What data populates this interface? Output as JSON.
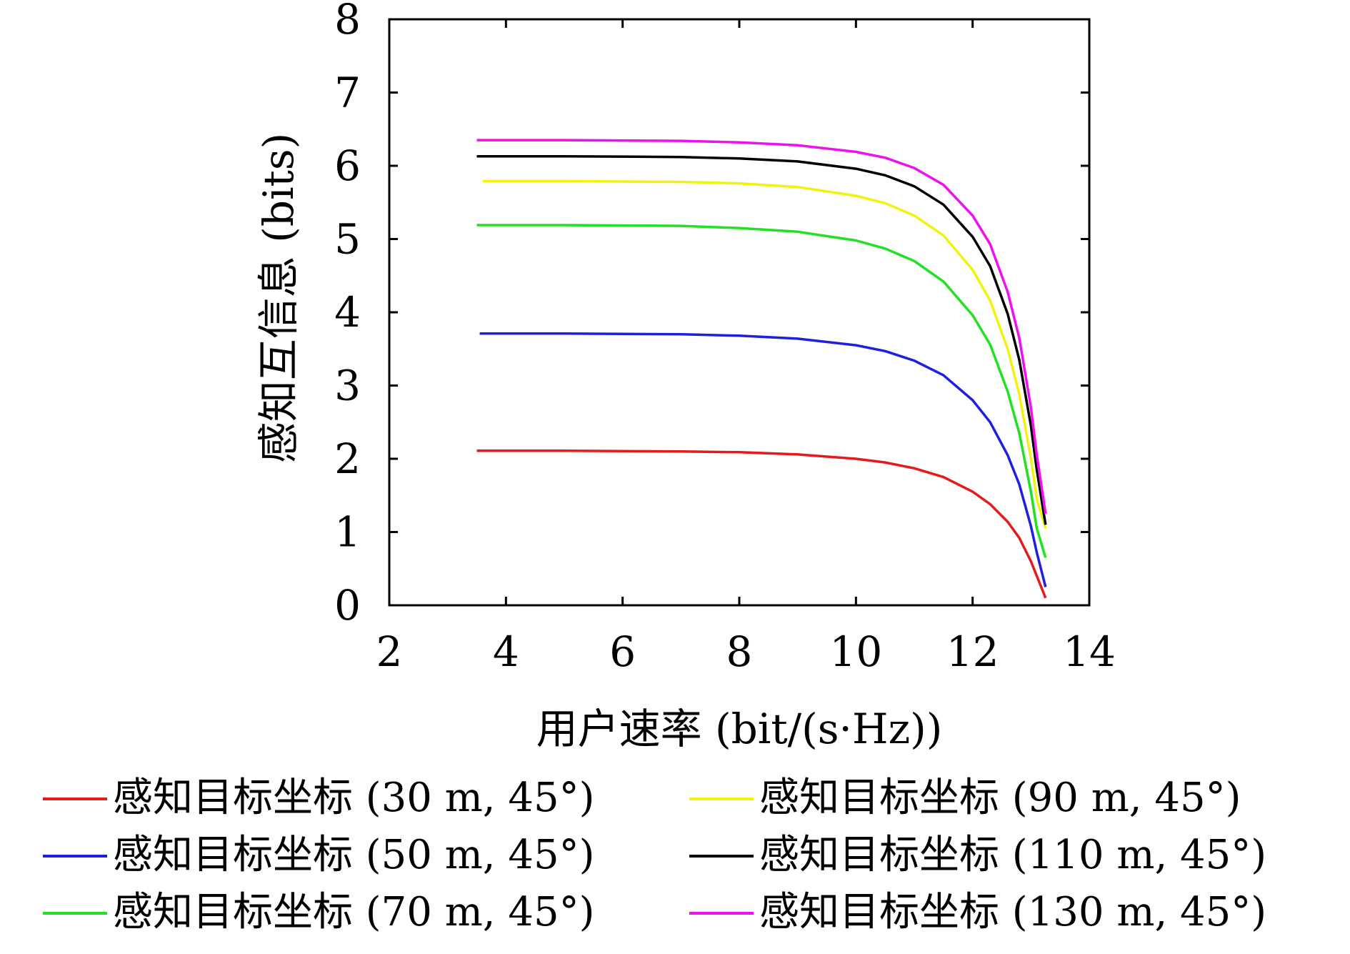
{
  "chart_data": {
    "type": "line",
    "title": "",
    "xlabel": "用户速率 (bit/(s·Hz))",
    "ylabel": "感知互信息 (bits)",
    "xlim": [
      2,
      14
    ],
    "ylim": [
      0,
      8
    ],
    "xticks": [
      2,
      4,
      6,
      8,
      10,
      12,
      14
    ],
    "yticks": [
      0,
      1,
      2,
      3,
      4,
      5,
      6,
      7,
      8
    ],
    "grid": false,
    "legend_position": "bottom",
    "series": [
      {
        "name": "感知目标坐标 (30 m, 45°)",
        "color": "#e41a1c",
        "x": [
          3.5,
          5,
          7,
          8,
          9,
          10,
          10.5,
          11,
          11.5,
          12,
          12.3,
          12.6,
          12.8,
          13.0,
          13.1,
          13.25
        ],
        "y": [
          2.11,
          2.11,
          2.1,
          2.09,
          2.06,
          2.0,
          1.95,
          1.87,
          1.75,
          1.55,
          1.38,
          1.14,
          0.92,
          0.6,
          0.4,
          0.1
        ]
      },
      {
        "name": "感知目标坐标 (50 m, 45°)",
        "color": "#1f1fe0",
        "x": [
          3.55,
          5,
          7,
          8,
          9,
          10,
          10.5,
          11,
          11.5,
          12,
          12.3,
          12.6,
          12.8,
          13.0,
          13.1,
          13.25
        ],
        "y": [
          3.71,
          3.71,
          3.7,
          3.68,
          3.64,
          3.55,
          3.47,
          3.34,
          3.14,
          2.8,
          2.5,
          2.05,
          1.65,
          1.08,
          0.72,
          0.25
        ]
      },
      {
        "name": "感知目标坐标 (70 m, 45°)",
        "color": "#22e022",
        "x": [
          3.5,
          5,
          7,
          8,
          9,
          10,
          10.5,
          11,
          11.5,
          12,
          12.3,
          12.6,
          12.8,
          13.0,
          13.1,
          13.25
        ],
        "y": [
          5.19,
          5.19,
          5.18,
          5.15,
          5.1,
          4.98,
          4.87,
          4.7,
          4.42,
          3.96,
          3.56,
          2.92,
          2.35,
          1.55,
          1.05,
          0.65
        ]
      },
      {
        "name": "感知目标坐标 (90 m, 45°)",
        "color": "#f2f20f",
        "x": [
          3.6,
          5,
          7,
          8,
          9,
          10,
          10.5,
          11,
          11.5,
          12,
          12.3,
          12.6,
          12.8,
          13.0,
          13.1,
          13.25
        ],
        "y": [
          5.79,
          5.79,
          5.78,
          5.76,
          5.71,
          5.59,
          5.49,
          5.32,
          5.05,
          4.58,
          4.16,
          3.5,
          2.88,
          2.0,
          1.45,
          1.05
        ]
      },
      {
        "name": "感知目标坐标 (110 m, 45°)",
        "color": "#000000",
        "x": [
          3.5,
          5,
          7,
          8,
          9,
          10,
          10.5,
          11,
          11.5,
          12,
          12.3,
          12.6,
          12.8,
          13.0,
          13.1,
          13.25
        ],
        "y": [
          6.13,
          6.13,
          6.12,
          6.1,
          6.06,
          5.96,
          5.87,
          5.72,
          5.47,
          5.03,
          4.63,
          3.98,
          3.35,
          2.45,
          1.85,
          1.1
        ]
      },
      {
        "name": "感知目标坐标 (130 m, 45°)",
        "color": "#ee10ee",
        "x": [
          3.5,
          5,
          7,
          8,
          9,
          10,
          10.5,
          11,
          11.5,
          12,
          12.3,
          12.6,
          12.8,
          13.0,
          13.1,
          13.25
        ],
        "y": [
          6.35,
          6.35,
          6.34,
          6.32,
          6.28,
          6.19,
          6.11,
          5.97,
          5.74,
          5.32,
          4.93,
          4.28,
          3.65,
          2.7,
          2.05,
          1.25
        ]
      }
    ]
  }
}
